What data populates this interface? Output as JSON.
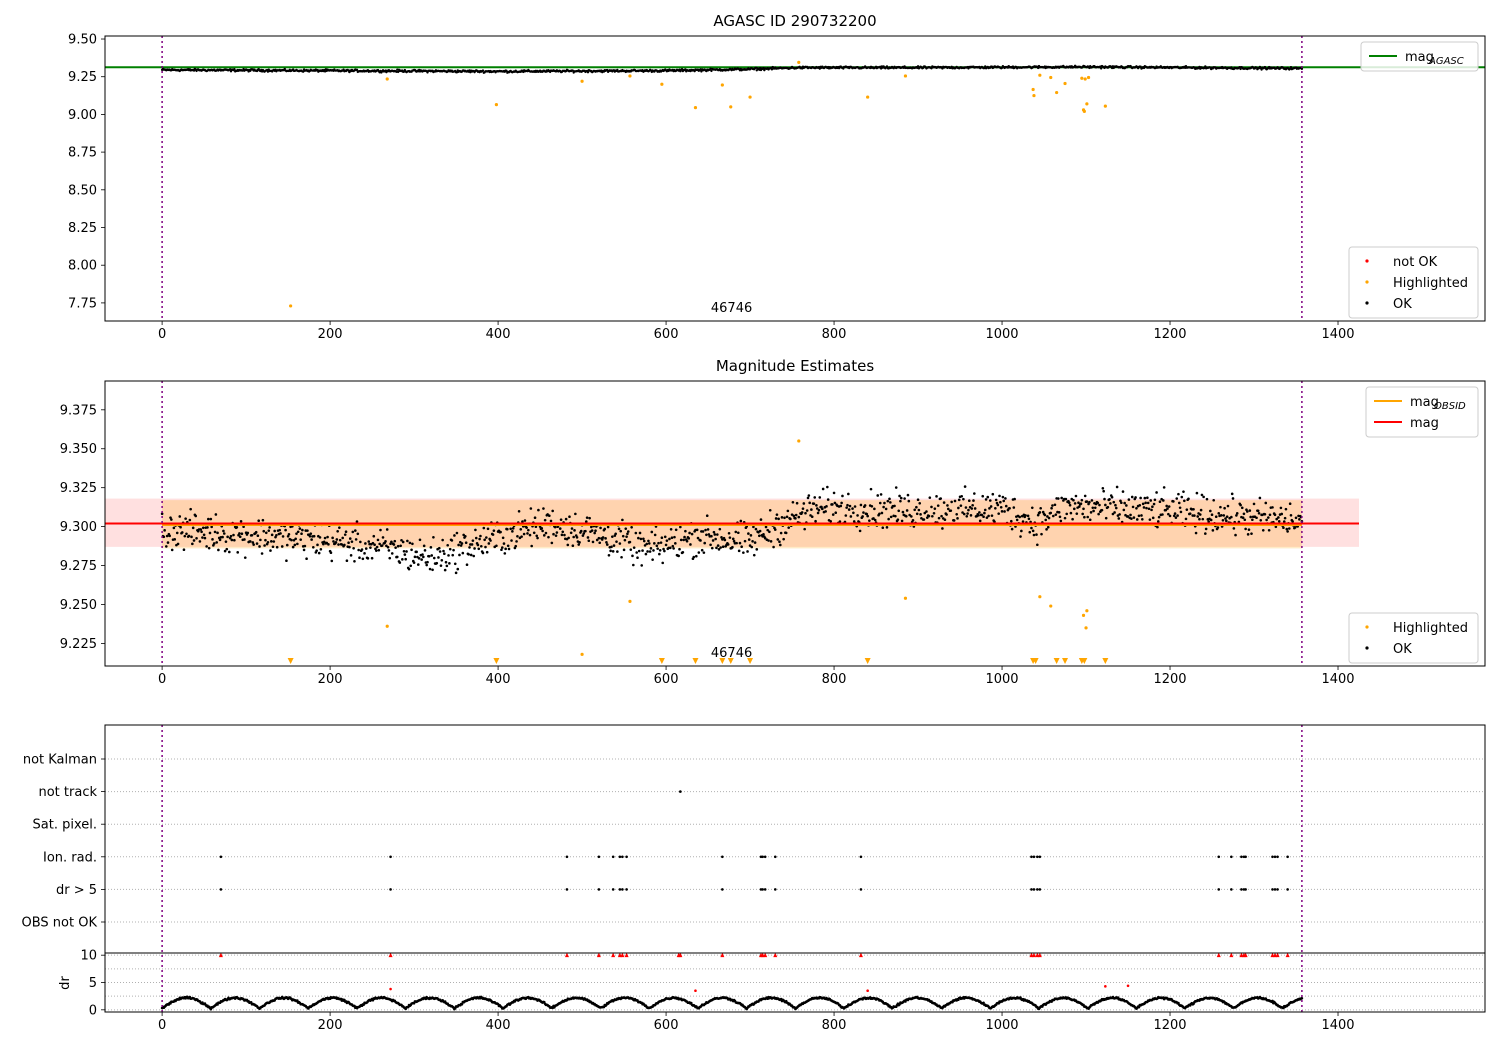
{
  "chart_data": [
    {
      "type": "scatter",
      "title": "AGASC ID 290732200",
      "annotation": "46746",
      "xlim": [
        -68,
        1575
      ],
      "ylim": [
        7.63,
        9.52
      ],
      "xticks": [
        0,
        200,
        400,
        600,
        800,
        1000,
        1200,
        1400
      ],
      "xtick_labels": [
        "0",
        "200",
        "400",
        "600",
        "800",
        "1000",
        "1200",
        "1400"
      ],
      "yticks": [
        7.75,
        8.0,
        8.25,
        8.5,
        8.75,
        9.0,
        9.25,
        9.5
      ],
      "ytick_labels": [
        "7.75",
        "8.00",
        "8.25",
        "8.50",
        "8.75",
        "9.00",
        "9.25",
        "9.50"
      ],
      "vlines": [
        0,
        1357
      ],
      "hlines": [
        {
          "name": "mag_AGASC",
          "y": 9.313,
          "color": "#008000"
        }
      ],
      "legends": [
        {
          "position": "upper right",
          "entries": [
            {
              "label": "mag",
              "sub": "AGASC",
              "kind": "line",
              "color": "#008000"
            }
          ]
        },
        {
          "position": "lower right",
          "entries": [
            {
              "label": "not OK",
              "kind": "dot",
              "color": "#ff0000"
            },
            {
              "label": "Highlighted",
              "kind": "dot",
              "color": "#ffa500"
            },
            {
              "label": "OK",
              "kind": "dot",
              "color": "#000000"
            }
          ]
        }
      ],
      "series": [
        {
          "name": "OK",
          "color": "#000000",
          "trend": [
            [
              0,
              9.295
            ],
            [
              200,
              9.29
            ],
            [
              400,
              9.285
            ],
            [
              600,
              9.29
            ],
            [
              700,
              9.3
            ],
            [
              760,
              9.31
            ],
            [
              900,
              9.31
            ],
            [
              1100,
              9.315
            ],
            [
              1357,
              9.305
            ]
          ],
          "spread": 0.013
        },
        {
          "name": "Highlighted",
          "color": "#ffa500",
          "points": [
            [
              153,
              7.73
            ],
            [
              268,
              9.235
            ],
            [
              398,
              9.065
            ],
            [
              500,
              9.22
            ],
            [
              557,
              9.255
            ],
            [
              595,
              9.2
            ],
            [
              635,
              9.045
            ],
            [
              667,
              9.195
            ],
            [
              677,
              9.05
            ],
            [
              700,
              9.115
            ],
            [
              758,
              9.345
            ],
            [
              840,
              9.115
            ],
            [
              885,
              9.255
            ],
            [
              1037,
              9.165
            ],
            [
              1038,
              9.125
            ],
            [
              1045,
              9.26
            ],
            [
              1058,
              9.245
            ],
            [
              1065,
              9.145
            ],
            [
              1075,
              9.205
            ],
            [
              1095,
              9.24
            ],
            [
              1097,
              9.03
            ],
            [
              1098,
              9.02
            ],
            [
              1099,
              9.235
            ],
            [
              1101,
              9.07
            ],
            [
              1103,
              9.245
            ],
            [
              1123,
              9.055
            ]
          ]
        }
      ]
    },
    {
      "type": "scatter",
      "title": "Magnitude Estimates",
      "annotation": "46746",
      "xlim": [
        -68,
        1575
      ],
      "ylim": [
        9.2105,
        9.3935
      ],
      "xticks": [
        0,
        200,
        400,
        600,
        800,
        1000,
        1200,
        1400
      ],
      "xtick_labels": [
        "0",
        "200",
        "400",
        "600",
        "800",
        "1000",
        "1200",
        "1400"
      ],
      "yticks": [
        9.225,
        9.25,
        9.275,
        9.3,
        9.325,
        9.35,
        9.375
      ],
      "ytick_labels": [
        "9.225",
        "9.250",
        "9.275",
        "9.300",
        "9.325",
        "9.350",
        "9.375"
      ],
      "vlines": [
        0,
        1357
      ],
      "mag": 9.302,
      "mag_band": [
        9.287,
        9.318
      ],
      "mag_obsid": 9.301,
      "mag_obsid_band": [
        9.286,
        9.317
      ],
      "legends": [
        {
          "position": "upper right",
          "entries": [
            {
              "label": "mag",
              "sub": "OBSID",
              "kind": "line",
              "color": "#ffa500"
            },
            {
              "label": "mag",
              "kind": "line",
              "color": "#ff0000"
            }
          ]
        },
        {
          "position": "lower right",
          "entries": [
            {
              "label": "Highlighted",
              "kind": "dot",
              "color": "#ffa500"
            },
            {
              "label": "OK",
              "kind": "dot",
              "color": "#000000"
            }
          ]
        }
      ],
      "series": [
        {
          "name": "OK",
          "color": "#000000",
          "trend": [
            [
              0,
              9.298
            ],
            [
              120,
              9.294
            ],
            [
              250,
              9.288
            ],
            [
              320,
              9.28
            ],
            [
              400,
              9.293
            ],
            [
              460,
              9.302
            ],
            [
              520,
              9.295
            ],
            [
              580,
              9.285
            ],
            [
              640,
              9.294
            ],
            [
              700,
              9.29
            ],
            [
              730,
              9.3
            ],
            [
              780,
              9.312
            ],
            [
              900,
              9.31
            ],
            [
              1000,
              9.312
            ],
            [
              1040,
              9.302
            ],
            [
              1080,
              9.313
            ],
            [
              1200,
              9.31
            ],
            [
              1357,
              9.303
            ]
          ],
          "spread": 0.011
        },
        {
          "name": "Highlighted",
          "color": "#ffa500",
          "points": [
            [
              268,
              9.236
            ],
            [
              500,
              9.218
            ],
            [
              557,
              9.252
            ],
            [
              885,
              9.254
            ],
            [
              1045,
              9.255
            ],
            [
              1058,
              9.249
            ],
            [
              1097,
              9.243
            ],
            [
              1101,
              9.246
            ],
            [
              1100,
              9.235
            ],
            [
              758,
              9.355
            ]
          ]
        },
        {
          "name": "Highlighted (below range)",
          "color": "#ffa500",
          "marker": "triangle-down",
          "x": [
            153,
            398,
            595,
            635,
            667,
            677,
            700,
            840,
            1037,
            1040,
            1065,
            1075,
            1095,
            1098,
            1123
          ]
        }
      ]
    },
    {
      "type": "scatter",
      "flags_panel": true,
      "xlim": [
        -68,
        1575
      ],
      "xticks": [
        0,
        200,
        400,
        600,
        800,
        1000,
        1200,
        1400
      ],
      "xtick_labels": [
        "0",
        "200",
        "400",
        "600",
        "800",
        "1000",
        "1200",
        "1400"
      ],
      "vlines": [
        0,
        1357
      ],
      "flag_labels": [
        "not Kalman",
        "not track",
        "Sat. pixel.",
        "Ion. rad.",
        "dr > 5",
        "OBS not OK"
      ],
      "flags": {
        "not Kalman": [],
        "not track": [
          617
        ],
        "Sat. pixel.": [],
        "Ion. rad.": [
          70,
          272,
          482,
          520,
          537,
          545,
          548,
          553,
          667,
          713,
          715,
          718,
          730,
          832,
          1035,
          1038,
          1042,
          1045,
          1258,
          1273,
          1285,
          1288,
          1290,
          1322,
          1325,
          1328,
          1340
        ],
        "dr > 5": [
          70,
          272,
          482,
          520,
          537,
          545,
          548,
          553,
          667,
          713,
          715,
          718,
          730,
          832,
          1035,
          1038,
          1042,
          1045,
          1258,
          1273,
          1285,
          1288,
          1290,
          1322,
          1325,
          1328,
          1340
        ],
        "OBS not OK": []
      },
      "dr": {
        "ylabel": "dr",
        "yticks": [
          0,
          5,
          10
        ],
        "ytick_labels": [
          "0",
          "5",
          "10"
        ],
        "ylim": [
          -0.4,
          10.4
        ],
        "clip": 10,
        "clipped_x": [
          70,
          272,
          482,
          520,
          537,
          545,
          548,
          553,
          615,
          617,
          667,
          713,
          715,
          718,
          730,
          832,
          1035,
          1038,
          1042,
          1045,
          1258,
          1273,
          1285,
          1288,
          1290,
          1322,
          1325,
          1328,
          1340
        ],
        "red_points": [
          [
            272,
            3.8
          ],
          [
            635,
            3.5
          ],
          [
            840,
            3.5
          ],
          [
            1123,
            4.3
          ],
          [
            1150,
            4.4
          ]
        ],
        "trend_period": 58
      }
    }
  ]
}
